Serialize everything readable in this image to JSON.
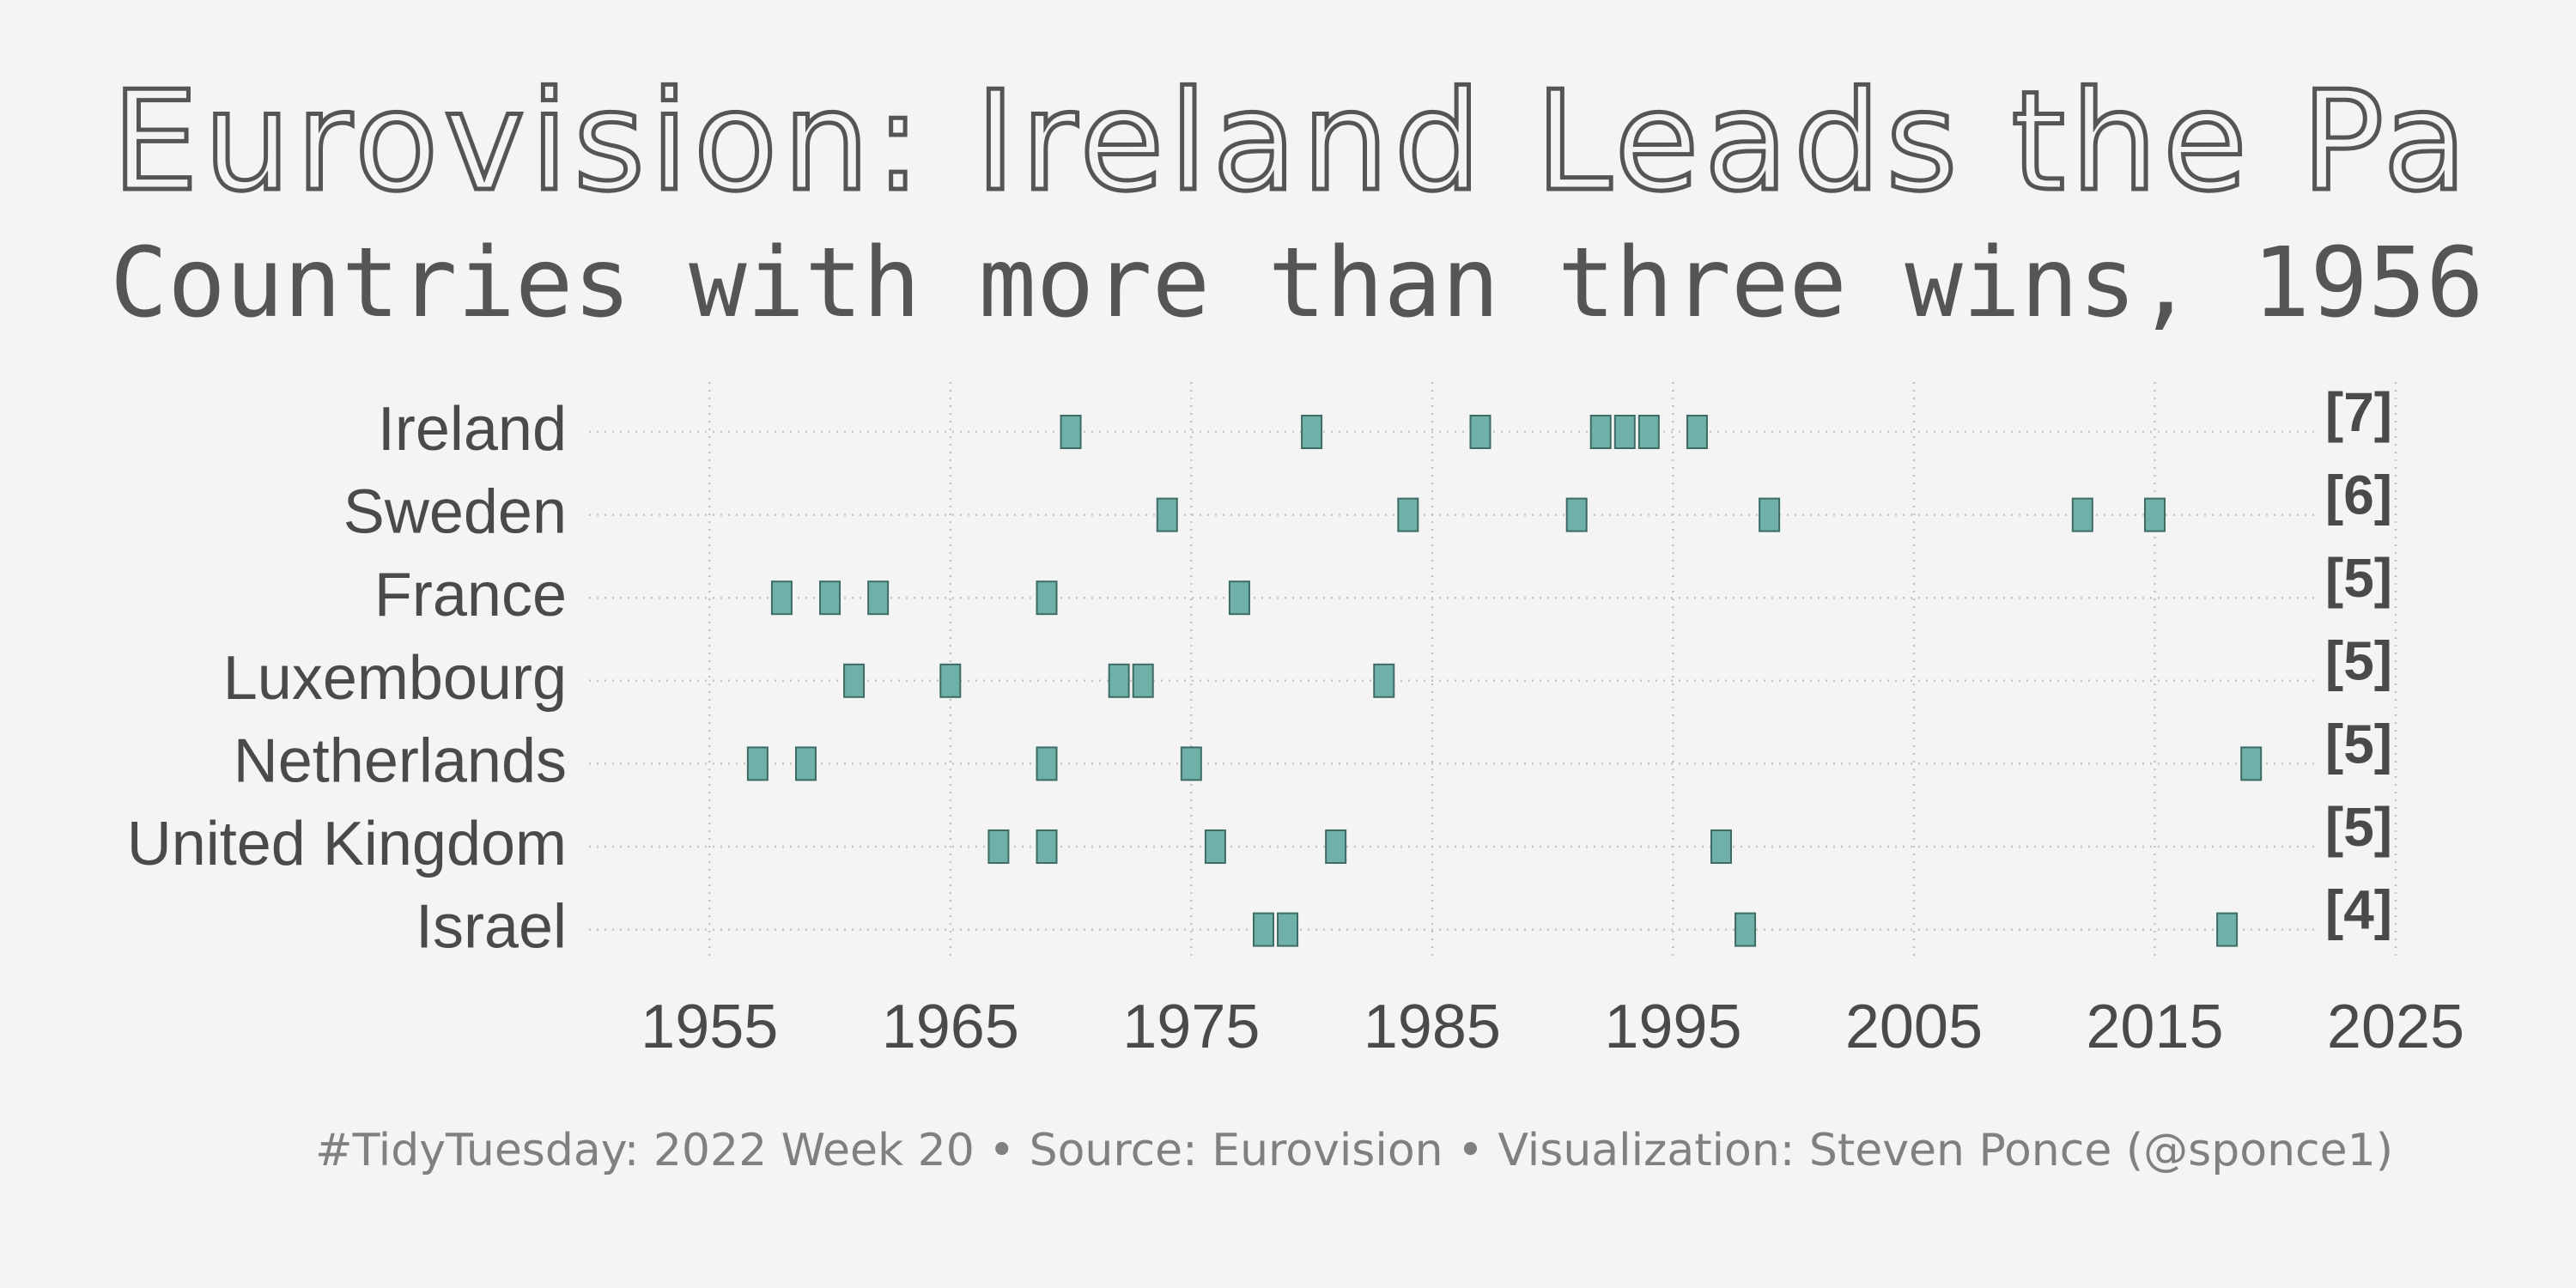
{
  "chart_data": {
    "type": "strip",
    "title": "Eurovision: Ireland Leads the Pa",
    "subtitle": "Countries with more than three wins, 1956",
    "caption": "#TidyTuesday: 2022 Week 20 • Source: Eurovision • Visualization: Steven Ponce (@sponce1)",
    "categories": [
      "Ireland",
      "Sweden",
      "France",
      "Luxembourg",
      "Netherlands",
      "United Kingdom",
      "Israel"
    ],
    "x": [
      [
        1970,
        1980,
        1987,
        1992,
        1993,
        1994,
        1996
      ],
      [
        1974,
        1984,
        1991,
        1999,
        2012,
        2015
      ],
      [
        1958,
        1960,
        1962,
        1969,
        1977
      ],
      [
        1961,
        1965,
        1972,
        1973,
        1983
      ],
      [
        1957,
        1959,
        1969,
        1975,
        2019
      ],
      [
        1967,
        1969,
        1976,
        1981,
        1997
      ],
      [
        1978,
        1979,
        1998,
        2018
      ]
    ],
    "count_labels": [
      "[7]",
      "[6]",
      "[5]",
      "[5]",
      "[5]",
      "[5]",
      "[4]"
    ],
    "color": "#6fb1a8",
    "xlim": [
      1950,
      2025
    ],
    "xticks": [
      1955,
      1965,
      1975,
      1985,
      1995,
      2005,
      2015,
      2025
    ],
    "grid": true
  }
}
